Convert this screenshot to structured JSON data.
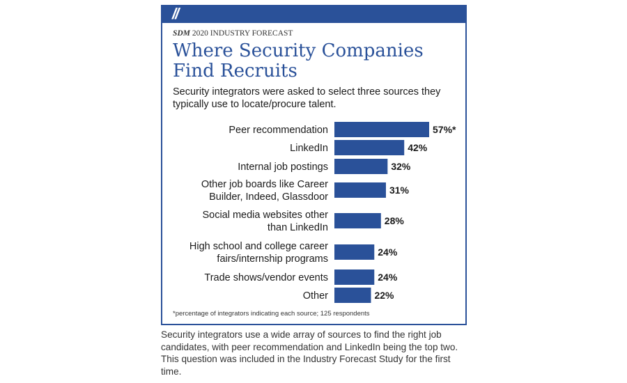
{
  "header": {
    "slash_mark": "//",
    "eyebrow_brand": "SDM",
    "eyebrow_rest": " 2020 INDUSTRY FORECAST",
    "title": "Where Security Companies Find Recruits",
    "subtitle": "Security integrators were asked to select three sources they typically use to locate/procure talent."
  },
  "colors": {
    "accent": "#2a5199",
    "bar": "#2a5199"
  },
  "chart_data": {
    "type": "bar",
    "orientation": "horizontal",
    "categories": [
      [
        "Peer recommendation"
      ],
      [
        "LinkedIn"
      ],
      [
        "Internal job postings"
      ],
      [
        "Other job boards like Career",
        "Builder, Indeed, Glassdoor"
      ],
      [
        "Social media websites other",
        "than LinkedIn"
      ],
      [
        "High school and college career",
        "fairs/internship programs"
      ],
      [
        "Trade shows/vendor events"
      ],
      [
        "Other"
      ]
    ],
    "values": [
      57,
      42,
      32,
      31,
      28,
      24,
      24,
      22
    ],
    "data_labels": [
      "57%*",
      "42%",
      "32%",
      "31%",
      "28%",
      "24%",
      "24%",
      "22%"
    ],
    "xlim": [
      0,
      57
    ],
    "grid": false,
    "legend": "none"
  },
  "footnote": "*percentage of integrators indicating each source; 125 respondents",
  "caption": "Security integrators use a wide array of sources to find the right job candidates, with peer recommendation and LinkedIn being the top two. This question was included in the Industry Forecast Study for the first time."
}
